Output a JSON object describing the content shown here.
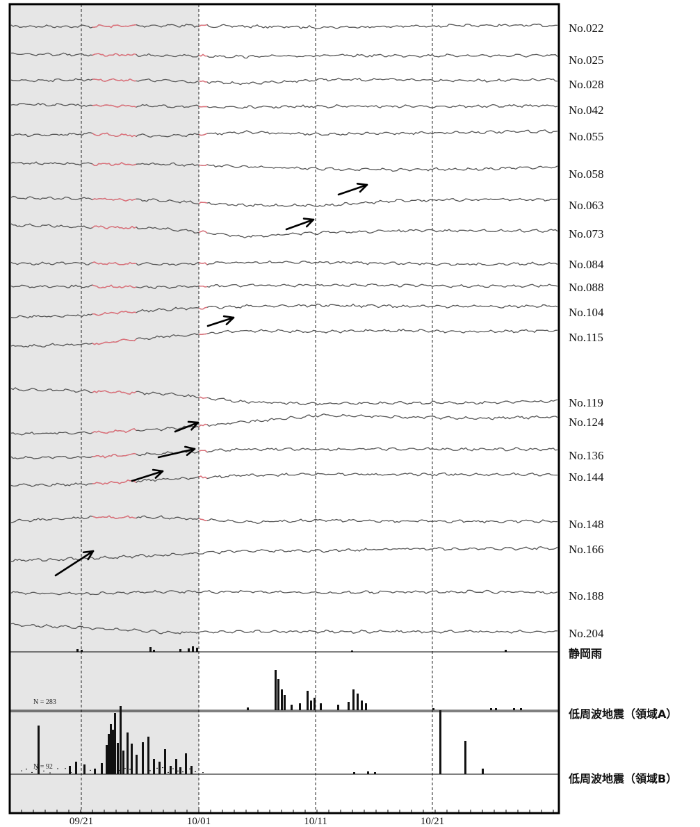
{
  "chart_data": {
    "type": "line",
    "x_tick_labels": [
      "09/21",
      "10/01",
      "10/11",
      "10/21"
    ],
    "shaded_period": [
      "start",
      "10/01"
    ],
    "series": [
      {
        "name": "No.022",
        "trend": [
          0,
          0,
          0.1,
          0,
          -0.1,
          0,
          0.1,
          0.1
        ],
        "red": true
      },
      {
        "name": "No.025",
        "trend": [
          0.2,
          0.1,
          0,
          -0.1,
          0,
          0,
          0,
          0
        ],
        "red": true
      },
      {
        "name": "No.028",
        "trend": [
          0,
          0.1,
          0,
          -0.3,
          0.1,
          0.1,
          0,
          0.1
        ],
        "red": true
      },
      {
        "name": "No.042",
        "trend": [
          0.2,
          0.1,
          0,
          -0.1,
          0,
          0,
          0,
          0.1
        ],
        "red": true
      },
      {
        "name": "No.055",
        "trend": [
          -0.1,
          0,
          -0.2,
          0.2,
          0,
          0.1,
          0.2,
          0.3
        ],
        "red": true
      },
      {
        "name": "No.058",
        "trend": [
          0.6,
          0.5,
          0.5,
          0.2,
          0,
          -0.1,
          0,
          0.2
        ],
        "red": true
      },
      {
        "name": "No.063",
        "trend": [
          0.4,
          0.3,
          0.1,
          -0.4,
          -0.4,
          0.1,
          0.2,
          0.2
        ],
        "red": true
      },
      {
        "name": "No.073",
        "trend": [
          0.6,
          0.4,
          0.2,
          -0.6,
          -0.2,
          0,
          0,
          0
        ],
        "red": true
      },
      {
        "name": "No.084",
        "trend": [
          0,
          0,
          -0.1,
          0.1,
          0.1,
          0,
          -0.1,
          0
        ],
        "red": true
      },
      {
        "name": "No.088",
        "trend": [
          0,
          0,
          -0.1,
          0.1,
          0.1,
          0.1,
          0,
          0.1
        ],
        "red": true
      },
      {
        "name": "No.104",
        "trend": [
          -0.8,
          -0.6,
          0,
          0.3,
          0.4,
          0.3,
          0.3,
          0.3
        ],
        "red": true
      },
      {
        "name": "No.115",
        "trend": [
          -1.3,
          -1.1,
          -0.3,
          0.3,
          0.2,
          0.3,
          0.2,
          0.3
        ],
        "red": true
      },
      {
        "name": "No.119",
        "trend": [
          1.0,
          0.8,
          0.5,
          -0.3,
          -0.5,
          -0.4,
          -0.4,
          -0.2
        ],
        "red": true
      },
      {
        "name": "No.124",
        "trend": [
          -1.5,
          -1.4,
          -1.0,
          -0.3,
          0.4,
          0.2,
          0.1,
          0.2
        ],
        "red": true
      },
      {
        "name": "No.136",
        "trend": [
          -0.5,
          -0.4,
          0,
          0.4,
          0.4,
          0.4,
          0.4,
          0.4
        ],
        "red": true
      },
      {
        "name": "No.144",
        "trend": [
          -1.0,
          -0.9,
          -0.4,
          0,
          0.1,
          0.1,
          0.1,
          0.1
        ],
        "red": true
      },
      {
        "name": "No.148",
        "trend": [
          0,
          0.4,
          0.4,
          -0.1,
          0.1,
          0,
          0,
          0
        ],
        "red": true
      },
      {
        "name": "No.166",
        "trend": [
          -1.4,
          -1.2,
          -0.8,
          -0.4,
          -0.4,
          -0.2,
          -0.2,
          -0.1
        ],
        "red": false
      },
      {
        "name": "No.188",
        "trend": [
          0,
          -0.1,
          0.1,
          0.1,
          0,
          0.1,
          0.1,
          0
        ],
        "red": false
      },
      {
        "name": "No.204",
        "trend": [
          0.5,
          0.2,
          -0.3,
          -0.2,
          -0.2,
          -0.2,
          -0.2,
          -0.2
        ],
        "red": false
      }
    ],
    "bar_panels": [
      {
        "name": "静岡雨",
        "n_label": ""
      },
      {
        "name": "低周波地震（領域A）",
        "n_label": "N =   283"
      },
      {
        "name": "低周波地震（領域B）",
        "n_label": "N =   92"
      }
    ]
  },
  "colors": {
    "trace": "#555555",
    "highlight": "#e0707a",
    "shade": "#e6e6e6"
  }
}
